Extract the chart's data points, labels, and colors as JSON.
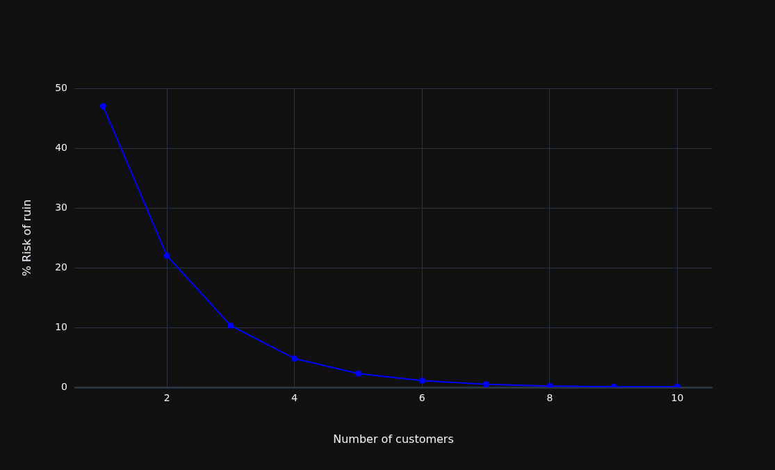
{
  "chart_data": {
    "type": "line",
    "xlabel": "Number of customers",
    "ylabel": "% Risk of ruin",
    "x": [
      1,
      2,
      3,
      4,
      5,
      6,
      7,
      8,
      9,
      10
    ],
    "series": [
      {
        "color": "#0000ff",
        "values": [
          47,
          22,
          10.3,
          4.8,
          2.3,
          1.1,
          0.5,
          0.2,
          0.1,
          0.1
        ]
      }
    ],
    "xlim": [
      0.55,
      10.55
    ],
    "xticks": [
      2,
      4,
      6,
      8,
      10
    ],
    "ylim": [
      0,
      50
    ],
    "yticks": [
      0,
      10,
      20,
      30,
      40,
      50
    ],
    "grid": true,
    "legend": false,
    "marker": "circle",
    "line_style": "solid"
  }
}
